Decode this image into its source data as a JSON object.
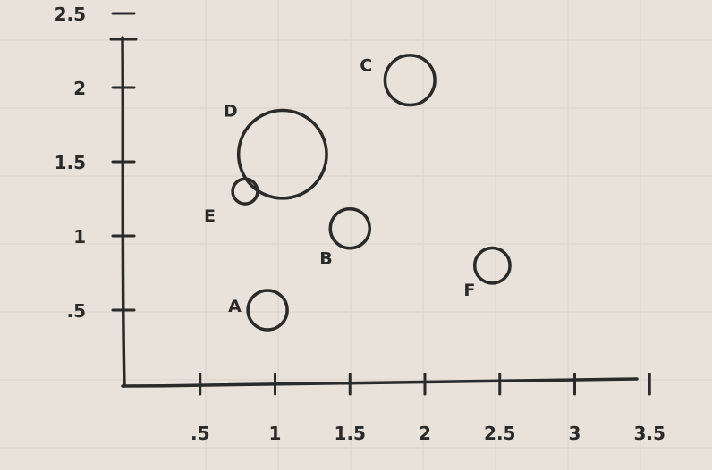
{
  "chart_data": {
    "type": "scatter",
    "title": "",
    "xlabel": "",
    "ylabel": "",
    "xlim": [
      0,
      3.5
    ],
    "ylim": [
      0,
      2.5
    ],
    "x_ticks": [
      {
        "value": 0.5,
        "label": ".5"
      },
      {
        "value": 1,
        "label": "1"
      },
      {
        "value": 1.5,
        "label": "1.5"
      },
      {
        "value": 2,
        "label": "2"
      },
      {
        "value": 2.5,
        "label": "2.5"
      },
      {
        "value": 3,
        "label": "3"
      },
      {
        "value": 3.5,
        "label": "3.5"
      }
    ],
    "y_ticks": [
      {
        "value": 0.5,
        "label": ".5"
      },
      {
        "value": 1,
        "label": "1"
      },
      {
        "value": 1.5,
        "label": "1.5"
      },
      {
        "value": 2,
        "label": "2"
      },
      {
        "value": 2.5,
        "label": "2.5"
      }
    ],
    "points": [
      {
        "label": "A",
        "x": 0.95,
        "y": 0.5,
        "size": 1
      },
      {
        "label": "B",
        "x": 1.5,
        "y": 1.05,
        "size": 1
      },
      {
        "label": "C",
        "x": 1.9,
        "y": 2.05,
        "size": 1.6
      },
      {
        "label": "D",
        "x": 1.05,
        "y": 1.55,
        "size": 5
      },
      {
        "label": "E",
        "x": 0.8,
        "y": 1.3,
        "size": 0.4
      },
      {
        "label": "F",
        "x": 2.45,
        "y": 0.8,
        "size": 0.8
      }
    ],
    "grid": true,
    "legend": "none",
    "colors": {
      "ink": "#2a2a2a",
      "paper": "#e8e2da",
      "grid": "#d9d3cb"
    }
  }
}
